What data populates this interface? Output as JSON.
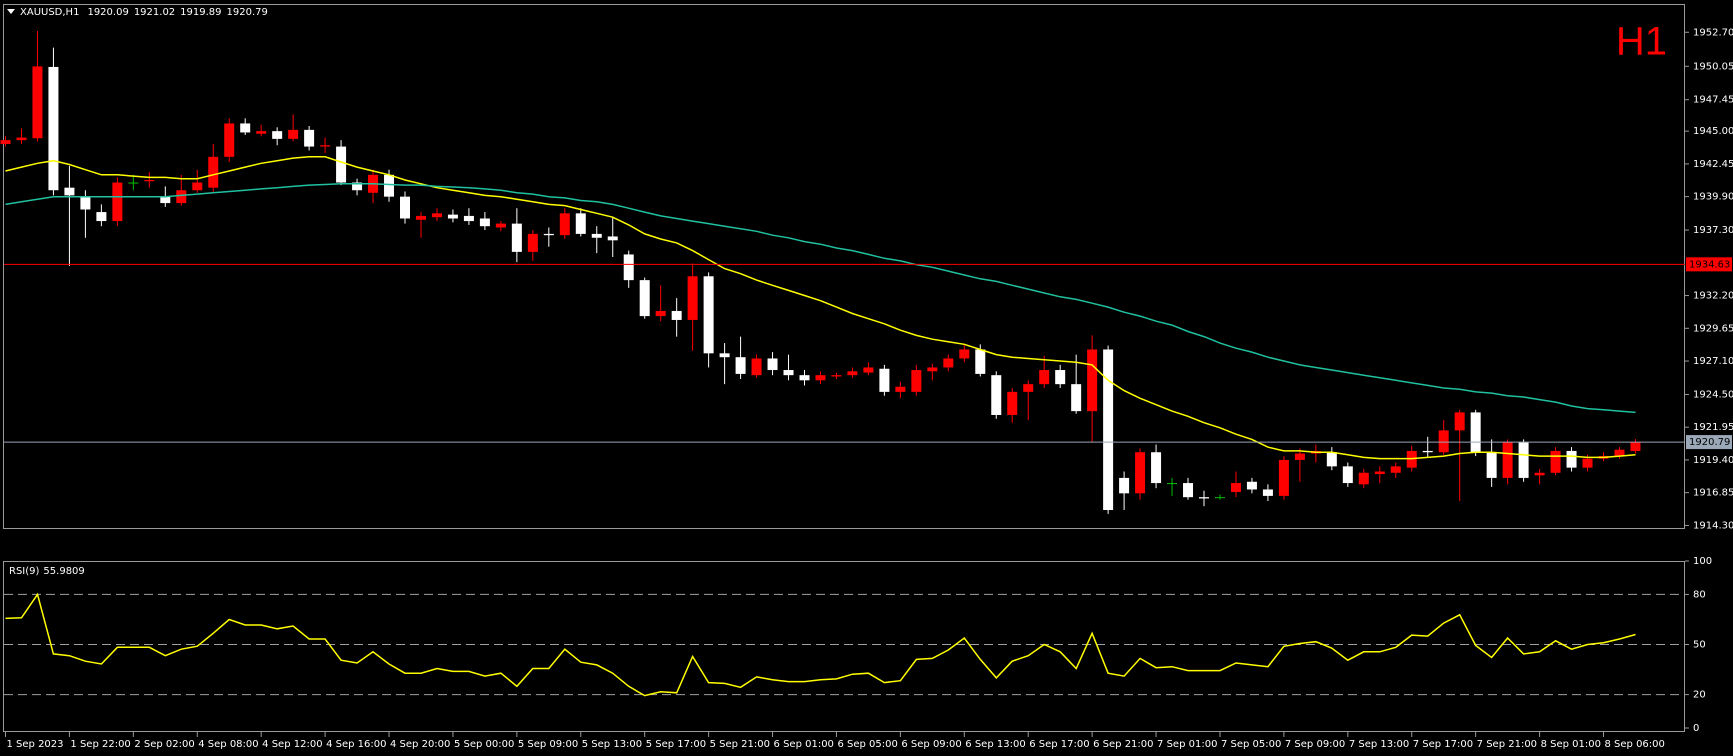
{
  "chart_data": [
    {
      "type": "candlestick",
      "title": "XAUUSD,H1",
      "header_values": [
        1920.09,
        1921.02,
        1919.89,
        1920.79
      ],
      "corner_label": "H1",
      "categories": [
        "1 Sep 2023",
        null,
        null,
        null,
        "1 Sep 22:00",
        null,
        null,
        null,
        "2 Sep 02:00",
        null,
        null,
        null,
        "4 Sep 08:00",
        null,
        null,
        null,
        "4 Sep 12:00",
        null,
        null,
        null,
        "4 Sep 16:00",
        null,
        null,
        null,
        "4 Sep 20:00",
        null,
        null,
        null,
        "5 Sep 00:00",
        null,
        null,
        null,
        "5 Sep 09:00",
        null,
        null,
        null,
        "5 Sep 13:00",
        null,
        null,
        null,
        "5 Sep 17:00",
        null,
        null,
        null,
        "5 Sep 21:00",
        null,
        null,
        null,
        "6 Sep 01:00",
        null,
        null,
        null,
        "6 Sep 05:00",
        null,
        null,
        null,
        "6 Sep 09:00",
        null,
        null,
        null,
        "6 Sep 13:00",
        null,
        null,
        null,
        "6 Sep 17:00",
        null,
        null,
        null,
        "6 Sep 21:00",
        null,
        null,
        null,
        "7 Sep 01:00",
        null,
        null,
        null,
        "7 Sep 05:00",
        null,
        null,
        null,
        "7 Sep 09:00",
        null,
        null,
        null,
        "7 Sep 13:00",
        null,
        null,
        null,
        "7 Sep 17:00",
        null,
        null,
        null,
        "7 Sep 21:00",
        null,
        null,
        null,
        "8 Sep 01:00",
        null,
        null,
        null,
        "8 Sep 06:00",
        null,
        null
      ],
      "open": [
        1944.0,
        1944.3,
        1944.45,
        1950.0,
        1940.6,
        1939.9,
        1938.7,
        1938.0,
        1941.0,
        1941.1,
        1939.9,
        1939.4,
        1940.4,
        1940.6,
        1943.0,
        1945.6,
        1944.8,
        1945.0,
        1944.4,
        1945.1,
        1943.8,
        1943.8,
        1941.0,
        1940.2,
        1941.6,
        1939.9,
        1938.1,
        1938.3,
        1938.5,
        1938.4,
        1938.2,
        1937.5,
        1937.8,
        1935.6,
        1937.0,
        1936.9,
        1938.6,
        1937.0,
        1936.8,
        1935.4,
        1933.4,
        1930.6,
        1931.0,
        1930.3,
        1933.7,
        1927.7,
        1927.4,
        1926.0,
        1927.3,
        1926.4,
        1926.0,
        1925.6,
        1925.9,
        1926.0,
        1926.2,
        1926.5,
        1924.7,
        1924.7,
        1926.3,
        1926.6,
        1927.3,
        1928.0,
        1926.0,
        1922.9,
        1924.7,
        1925.3,
        1926.4,
        1925.3,
        1923.2,
        1928.0,
        1918.0,
        1916.8,
        1920.0,
        1917.6,
        1917.6,
        1916.5,
        1916.5,
        1916.9,
        1917.7,
        1917.1,
        1916.6,
        1919.4,
        1919.9,
        1920.0,
        1918.9,
        1917.5,
        1918.3,
        1918.4,
        1918.8,
        1920.1,
        1920.0,
        1921.7,
        1923.1,
        1920.0,
        1918.0,
        1920.8,
        1918.2,
        1918.4,
        1920.1,
        1918.8,
        1919.5,
        1919.7,
        1920.09
      ],
      "high": [
        1944.6,
        1945.2,
        1952.8,
        1951.5,
        1942.3,
        1940.4,
        1939.3,
        1941.4,
        1941.6,
        1941.8,
        1940.7,
        1941.6,
        1942.0,
        1944.0,
        1946.0,
        1946.0,
        1945.5,
        1945.3,
        1946.3,
        1945.4,
        1944.5,
        1944.3,
        1941.3,
        1942.0,
        1942.0,
        1940.3,
        1938.7,
        1939.0,
        1938.9,
        1939.0,
        1938.7,
        1938.0,
        1939.0,
        1937.3,
        1937.5,
        1939.0,
        1939.0,
        1937.6,
        1938.3,
        1935.7,
        1933.6,
        1933.0,
        1932.0,
        1934.7,
        1934.0,
        1928.5,
        1929.0,
        1927.6,
        1927.8,
        1927.6,
        1926.4,
        1926.3,
        1926.2,
        1926.6,
        1927.0,
        1926.8,
        1925.5,
        1926.8,
        1926.9,
        1927.6,
        1928.4,
        1928.4,
        1926.3,
        1925.0,
        1925.6,
        1927.5,
        1926.8,
        1927.6,
        1929.1,
        1928.3,
        1918.5,
        1920.3,
        1920.6,
        1918.0,
        1918.0,
        1917.0,
        1916.7,
        1918.5,
        1918.0,
        1917.5,
        1919.7,
        1920.3,
        1920.6,
        1920.4,
        1919.2,
        1918.7,
        1918.9,
        1919.2,
        1920.5,
        1921.2,
        1922.5,
        1923.3,
        1923.3,
        1921.0,
        1921.0,
        1921.0,
        1918.7,
        1920.4,
        1920.4,
        1919.8,
        1920.0,
        1920.4,
        1921.02
      ],
      "low": [
        1943.8,
        1944.0,
        1944.2,
        1940.0,
        1934.5,
        1936.7,
        1937.6,
        1937.6,
        1940.4,
        1940.6,
        1939.1,
        1939.2,
        1940.2,
        1940.2,
        1942.6,
        1944.7,
        1944.6,
        1943.9,
        1944.2,
        1943.5,
        1943.3,
        1940.8,
        1940.0,
        1939.4,
        1939.5,
        1937.8,
        1936.7,
        1938.0,
        1937.9,
        1937.7,
        1937.3,
        1937.2,
        1934.8,
        1934.9,
        1936.0,
        1936.6,
        1936.8,
        1935.5,
        1935.2,
        1932.8,
        1930.4,
        1930.2,
        1929.0,
        1927.9,
        1926.6,
        1925.3,
        1925.7,
        1925.8,
        1926.0,
        1925.6,
        1925.2,
        1925.3,
        1925.7,
        1925.8,
        1926.0,
        1924.4,
        1924.2,
        1924.4,
        1925.6,
        1926.3,
        1927.0,
        1925.9,
        1922.6,
        1922.3,
        1922.5,
        1925.0,
        1925.0,
        1923.0,
        1920.8,
        1915.2,
        1915.5,
        1916.3,
        1917.2,
        1916.6,
        1916.3,
        1915.8,
        1916.3,
        1916.5,
        1916.8,
        1916.2,
        1916.3,
        1917.7,
        1919.2,
        1918.6,
        1917.3,
        1917.2,
        1917.6,
        1918.0,
        1918.5,
        1919.6,
        1919.8,
        1916.2,
        1919.7,
        1917.3,
        1917.5,
        1917.7,
        1917.5,
        1918.2,
        1918.5,
        1918.5,
        1919.3,
        1919.5,
        1919.89
      ],
      "close": [
        1944.3,
        1944.5,
        1950.04,
        1940.4,
        1940.0,
        1938.9,
        1938.0,
        1941.0,
        1941.0,
        1941.2,
        1939.4,
        1940.4,
        1941.0,
        1943.0,
        1945.6,
        1944.9,
        1945.0,
        1944.4,
        1945.1,
        1943.8,
        1943.9,
        1941.0,
        1940.4,
        1941.6,
        1939.9,
        1938.2,
        1938.4,
        1938.6,
        1938.2,
        1938.0,
        1937.6,
        1937.8,
        1935.6,
        1937.0,
        1936.9,
        1938.6,
        1937.0,
        1936.7,
        1936.5,
        1933.4,
        1930.6,
        1931.0,
        1930.3,
        1933.7,
        1927.7,
        1927.4,
        1926.1,
        1927.3,
        1926.4,
        1926.0,
        1925.6,
        1926.0,
        1926.0,
        1926.3,
        1926.6,
        1924.7,
        1925.1,
        1926.4,
        1926.6,
        1927.3,
        1928.0,
        1926.1,
        1922.9,
        1924.7,
        1925.3,
        1926.4,
        1925.3,
        1923.2,
        1928.0,
        1915.5,
        1916.8,
        1920.0,
        1917.6,
        1917.6,
        1916.5,
        1916.4,
        1916.5,
        1917.6,
        1917.1,
        1916.6,
        1919.4,
        1919.9,
        1920.1,
        1918.9,
        1917.6,
        1918.4,
        1918.5,
        1918.9,
        1920.1,
        1920.0,
        1921.7,
        1923.1,
        1920.0,
        1918.0,
        1920.8,
        1918.0,
        1918.4,
        1920.1,
        1918.8,
        1919.5,
        1919.7,
        1920.2,
        1920.79
      ],
      "colors": {
        "up": "#ff0000",
        "down": "#ffffff",
        "doji": "#00c000"
      },
      "series": [
        {
          "color": "#ffff00",
          "values": [
            1941.9,
            1942.2,
            1942.5,
            1942.7,
            1942.4,
            1942.0,
            1941.6,
            1941.6,
            1941.5,
            1941.4,
            1941.4,
            1941.3,
            1941.3,
            1941.6,
            1941.9,
            1942.2,
            1942.5,
            1942.7,
            1942.9,
            1943.0,
            1943.0,
            1942.6,
            1942.2,
            1941.9,
            1941.6,
            1941.2,
            1940.9,
            1940.6,
            1940.4,
            1940.2,
            1940.0,
            1939.9,
            1939.7,
            1939.5,
            1939.3,
            1939.2,
            1938.9,
            1938.6,
            1938.3,
            1937.7,
            1937.0,
            1936.6,
            1936.3,
            1935.7,
            1935.0,
            1934.3,
            1933.9,
            1933.4,
            1933.0,
            1932.6,
            1932.2,
            1931.8,
            1931.3,
            1930.8,
            1930.4,
            1930.0,
            1929.5,
            1929.1,
            1928.8,
            1928.6,
            1928.4,
            1928.0,
            1927.6,
            1927.4,
            1927.3,
            1927.2,
            1927.1,
            1927.0,
            1926.8,
            1925.6,
            1924.8,
            1924.2,
            1923.7,
            1923.2,
            1922.8,
            1922.3,
            1921.9,
            1921.4,
            1921.0,
            1920.4,
            1920.1,
            1920.1,
            1920.0,
            1920.0,
            1919.8,
            1919.6,
            1919.5,
            1919.5,
            1919.5,
            1919.6,
            1919.7,
            1919.9,
            1920.0,
            1920.0,
            1919.9,
            1919.8,
            1919.7,
            1919.7,
            1919.7,
            1919.6,
            1919.6,
            1919.7,
            1919.8
          ]
        },
        {
          "color": "#20c0a0",
          "values": [
            1939.3,
            1939.5,
            1939.7,
            1939.9,
            1939.9,
            1939.9,
            1939.9,
            1939.9,
            1939.9,
            1939.9,
            1939.9,
            1940.0,
            1940.1,
            1940.2,
            1940.3,
            1940.4,
            1940.5,
            1940.6,
            1940.7,
            1940.8,
            1940.85,
            1940.9,
            1940.9,
            1940.9,
            1940.85,
            1940.8,
            1940.8,
            1940.7,
            1940.65,
            1940.6,
            1940.5,
            1940.4,
            1940.2,
            1940.1,
            1939.9,
            1939.8,
            1939.6,
            1939.5,
            1939.3,
            1939.0,
            1938.7,
            1938.4,
            1938.2,
            1938.0,
            1937.8,
            1937.6,
            1937.4,
            1937.2,
            1936.9,
            1936.7,
            1936.4,
            1936.2,
            1935.9,
            1935.7,
            1935.4,
            1935.1,
            1934.9,
            1934.6,
            1934.4,
            1934.1,
            1933.8,
            1933.5,
            1933.3,
            1933.0,
            1932.7,
            1932.4,
            1932.1,
            1931.9,
            1931.6,
            1931.3,
            1930.9,
            1930.6,
            1930.2,
            1929.9,
            1929.4,
            1929.0,
            1928.5,
            1928.1,
            1927.8,
            1927.4,
            1927.1,
            1926.8,
            1926.6,
            1926.4,
            1926.2,
            1926.0,
            1925.8,
            1925.6,
            1925.4,
            1925.2,
            1925.0,
            1924.9,
            1924.7,
            1924.6,
            1924.4,
            1924.3,
            1924.1,
            1923.9,
            1923.6,
            1923.4,
            1923.3,
            1923.2,
            1923.1
          ]
        }
      ],
      "hlines": [
        {
          "value": 1934.63,
          "label": "1934.63",
          "color": "#ff0000"
        },
        {
          "value": 1920.79,
          "label": "1920.79",
          "color": "#9aa8b8"
        }
      ],
      "ylim": [
        1914.1,
        1954.2
      ],
      "yticks": [
        {
          "value": 1914.3,
          "label": "1914.30"
        },
        {
          "value": 1916.85,
          "label": "1916.85"
        },
        {
          "value": 1919.4,
          "label": "1919.40"
        },
        {
          "value": 1921.95,
          "label": "1921.95"
        },
        {
          "value": 1924.5,
          "label": "1924.50"
        },
        {
          "value": 1927.1,
          "label": "1927.10"
        },
        {
          "value": 1929.65,
          "label": "1929.65"
        },
        {
          "value": 1932.2,
          "label": "1932.20"
        },
        {
          "value": 1937.3,
          "label": "1937.30"
        },
        {
          "value": 1939.9,
          "label": "1939.90"
        },
        {
          "value": 1942.45,
          "label": "1942.45"
        },
        {
          "value": 1945.0,
          "label": "1945.00"
        },
        {
          "value": 1947.45,
          "label": "1947.45"
        },
        {
          "value": 1950.05,
          "label": "1950.05"
        },
        {
          "value": 1952.7,
          "label": "1952.70"
        }
      ]
    },
    {
      "type": "line",
      "title": "RSI(9)",
      "title_value": 55.9809,
      "series": [
        {
          "color": "#ffff00",
          "values": [
            65.6,
            66,
            80,
            44.4,
            43.3,
            40,
            38.3,
            48.3,
            48.3,
            48.3,
            43.3,
            47.2,
            49,
            56.7,
            65,
            61.7,
            61.7,
            59.4,
            61.1,
            53.3,
            53.3,
            40.6,
            38.9,
            45.6,
            38.3,
            32.8,
            32.8,
            35.6,
            33.9,
            33.9,
            31.1,
            32.8,
            25,
            35.6,
            35.6,
            47.2,
            39.4,
            37.8,
            32.8,
            25,
            19.4,
            21.7,
            21.1,
            42.8,
            27.2,
            26.7,
            24.4,
            30.6,
            28.9,
            27.8,
            27.8,
            28.9,
            29.4,
            32.2,
            32.8,
            27.2,
            28.3,
            41.1,
            41.7,
            46.7,
            53.9,
            41.1,
            30,
            40,
            43.3,
            50,
            45.6,
            35.6,
            56.7,
            32.8,
            31.1,
            41.7,
            36.1,
            36.7,
            34.4,
            34.4,
            34.4,
            38.9,
            37.8,
            36.7,
            48.9,
            50.6,
            51.7,
            47.8,
            40.6,
            45.6,
            45.6,
            48.3,
            55.6,
            55,
            62.8,
            67.8,
            49.4,
            42.2,
            53.9,
            44.4,
            45.6,
            52.2,
            47.2,
            50,
            51.1,
            53.3,
            55.98
          ]
        }
      ],
      "levels": [
        20,
        50,
        80
      ],
      "ylim": [
        0,
        100
      ],
      "yticks": [
        0,
        20,
        50,
        80,
        100
      ]
    }
  ]
}
